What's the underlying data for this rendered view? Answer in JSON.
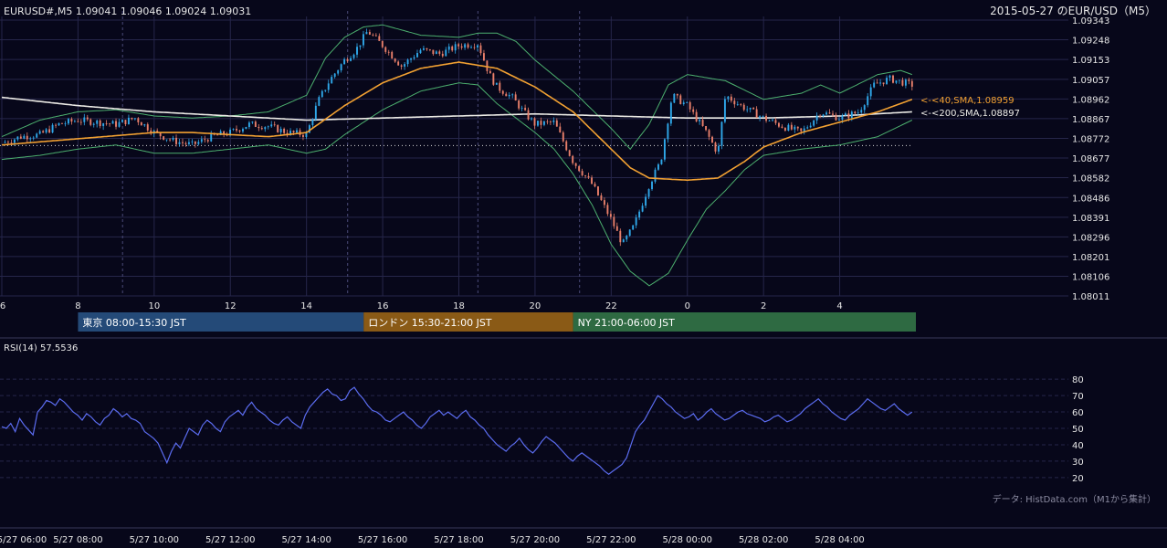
{
  "header": {
    "symbol_info": "EURUSD#,M5 1.09041 1.09046 1.09024 1.09031",
    "title": "2015-05-27 のEUR/USD（M5）"
  },
  "colors": {
    "background": "#07071a",
    "grid": "#26264a",
    "axis_text": "#e6e6e6",
    "candle_up": "#2fa7e8",
    "candle_down": "#e87f6a",
    "bollinger": "#4caf6e",
    "sma40": "#f2a132",
    "sma200": "#ecebe6",
    "rsi": "#5b6cf0",
    "session_tokyo": "#244a78",
    "session_london": "#8a5a16",
    "session_ny": "#2e6a42"
  },
  "chart_data": [
    {
      "type": "candlestick",
      "name": "price",
      "y_ticks": [
        "1.09343",
        "1.09248",
        "1.09153",
        "1.09057",
        "1.08962",
        "1.08867",
        "1.08772",
        "1.08677",
        "1.08582",
        "1.08486",
        "1.08391",
        "1.08296",
        "1.08201",
        "1.08106",
        "1.08011"
      ],
      "ylim": [
        1.08011,
        1.09343
      ],
      "x_ticks": [
        {
          "label": "6",
          "h": 6
        },
        {
          "label": "8",
          "h": 8
        },
        {
          "label": "10",
          "h": 10
        },
        {
          "label": "12",
          "h": 12
        },
        {
          "label": "14",
          "h": 14
        },
        {
          "label": "16",
          "h": 16
        },
        {
          "label": "18",
          "h": 18
        },
        {
          "label": "20",
          "h": 20
        },
        {
          "label": "22",
          "h": 22
        },
        {
          "label": "0",
          "h": 24
        },
        {
          "label": "2",
          "h": 26
        },
        {
          "label": "4",
          "h": 28
        }
      ],
      "x_range_hours": [
        6,
        30
      ],
      "session_markers_hours": [
        9.17,
        15.08,
        18.5,
        21.17
      ],
      "reference_level": 1.08737,
      "indicators": [
        {
          "label": "<-<40,SMA,1.08959",
          "value": 1.08959,
          "color_key": "sma40"
        },
        {
          "label": "<-<200,SMA,1.08897",
          "value": 1.08897,
          "color_key": "sma200"
        }
      ],
      "sma40_path": [
        [
          6,
          1.0874
        ],
        [
          8,
          1.0877
        ],
        [
          10,
          1.088
        ],
        [
          11,
          1.088
        ],
        [
          12,
          1.0879
        ],
        [
          13,
          1.0878
        ],
        [
          14,
          1.088
        ],
        [
          15,
          1.0893
        ],
        [
          16,
          1.0904
        ],
        [
          17,
          1.0911
        ],
        [
          18,
          1.0914
        ],
        [
          19,
          1.0911
        ],
        [
          20,
          1.0902
        ],
        [
          21,
          1.089
        ],
        [
          22,
          1.0872
        ],
        [
          22.5,
          1.0863
        ],
        [
          23,
          1.0858
        ],
        [
          24,
          1.0857
        ],
        [
          24.8,
          1.0858
        ],
        [
          25.5,
          1.0866
        ],
        [
          26,
          1.0873
        ],
        [
          27,
          1.088
        ],
        [
          28,
          1.0885
        ],
        [
          29,
          1.089
        ],
        [
          29.9,
          1.0896
        ]
      ],
      "sma200_path": [
        [
          6,
          1.0897
        ],
        [
          8,
          1.0893
        ],
        [
          10,
          1.089
        ],
        [
          12,
          1.0888
        ],
        [
          14,
          1.0886
        ],
        [
          16,
          1.0887
        ],
        [
          18,
          1.0888
        ],
        [
          20,
          1.0889
        ],
        [
          22,
          1.0888
        ],
        [
          24,
          1.0887
        ],
        [
          26,
          1.0887
        ],
        [
          28,
          1.0888
        ],
        [
          29.9,
          1.089
        ]
      ],
      "bb_upper": [
        [
          6,
          1.0878
        ],
        [
          7,
          1.0886
        ],
        [
          8,
          1.089
        ],
        [
          9,
          1.0891
        ],
        [
          10,
          1.0888
        ],
        [
          11,
          1.0887
        ],
        [
          12,
          1.0888
        ],
        [
          13,
          1.089
        ],
        [
          14,
          1.0898
        ],
        [
          14.5,
          1.0916
        ],
        [
          15,
          1.0926
        ],
        [
          15.5,
          1.0931
        ],
        [
          16,
          1.0932
        ],
        [
          17,
          1.0927
        ],
        [
          18,
          1.0926
        ],
        [
          18.5,
          1.0928
        ],
        [
          19,
          1.0928
        ],
        [
          19.5,
          1.0924
        ],
        [
          20,
          1.0915
        ],
        [
          21,
          1.09
        ],
        [
          22,
          1.0882
        ],
        [
          22.5,
          1.0872
        ],
        [
          23,
          1.0884
        ],
        [
          23.5,
          1.0903
        ],
        [
          24,
          1.0908
        ],
        [
          25,
          1.0905
        ],
        [
          26,
          1.0896
        ],
        [
          27,
          1.0899
        ],
        [
          27.5,
          1.0903
        ],
        [
          28,
          1.0899
        ],
        [
          29,
          1.0908
        ],
        [
          29.6,
          1.091
        ],
        [
          29.9,
          1.0908
        ]
      ],
      "bb_lower": [
        [
          6,
          1.0867
        ],
        [
          7,
          1.0869
        ],
        [
          8,
          1.0872
        ],
        [
          9,
          1.0874
        ],
        [
          10,
          1.087
        ],
        [
          11,
          1.087
        ],
        [
          12,
          1.0872
        ],
        [
          13,
          1.0874
        ],
        [
          14,
          1.087
        ],
        [
          14.5,
          1.0872
        ],
        [
          15,
          1.0879
        ],
        [
          16,
          1.0891
        ],
        [
          17,
          1.09
        ],
        [
          18,
          1.0904
        ],
        [
          18.5,
          1.0903
        ],
        [
          19,
          1.0894
        ],
        [
          20,
          1.088
        ],
        [
          20.5,
          1.0872
        ],
        [
          21,
          1.086
        ],
        [
          21.5,
          1.0845
        ],
        [
          22,
          1.0826
        ],
        [
          22.5,
          1.0813
        ],
        [
          23,
          1.0806
        ],
        [
          23.5,
          1.0812
        ],
        [
          24,
          1.0828
        ],
        [
          24.5,
          1.0843
        ],
        [
          25,
          1.0852
        ],
        [
          25.5,
          1.0862
        ],
        [
          26,
          1.0869
        ],
        [
          27,
          1.0872
        ],
        [
          28,
          1.0874
        ],
        [
          29,
          1.0878
        ],
        [
          29.9,
          1.0886
        ]
      ],
      "close_path": [
        [
          6,
          1.0875
        ],
        [
          6.5,
          1.0878
        ],
        [
          7,
          1.0879
        ],
        [
          7.5,
          1.0884
        ],
        [
          8,
          1.0886
        ],
        [
          8.5,
          1.0885
        ],
        [
          9,
          1.0884
        ],
        [
          9.5,
          1.0887
        ],
        [
          10,
          1.088
        ],
        [
          10.5,
          1.0876
        ],
        [
          11,
          1.0874
        ],
        [
          11.5,
          1.0878
        ],
        [
          12,
          1.088
        ],
        [
          12.5,
          1.0884
        ],
        [
          13,
          1.0883
        ],
        [
          13.5,
          1.088
        ],
        [
          14,
          1.0879
        ],
        [
          14.3,
          1.0895
        ],
        [
          14.6,
          1.0905
        ],
        [
          15,
          1.0915
        ],
        [
          15.3,
          1.092
        ],
        [
          15.6,
          1.0929
        ],
        [
          16,
          1.0922
        ],
        [
          16.5,
          1.0912
        ],
        [
          17,
          1.092
        ],
        [
          17.5,
          1.0918
        ],
        [
          18,
          1.0922
        ],
        [
          18.5,
          1.0923
        ],
        [
          18.8,
          1.0908
        ],
        [
          19,
          1.0902
        ],
        [
          19.4,
          1.0897
        ],
        [
          19.7,
          1.089
        ],
        [
          20,
          1.0884
        ],
        [
          20.5,
          1.0885
        ],
        [
          21,
          1.0866
        ],
        [
          21.5,
          1.0855
        ],
        [
          22,
          1.0838
        ],
        [
          22.3,
          1.0826
        ],
        [
          22.6,
          1.0835
        ],
        [
          23,
          1.0855
        ],
        [
          23.3,
          1.0866
        ],
        [
          23.6,
          1.0898
        ],
        [
          24,
          1.0893
        ],
        [
          24.5,
          1.088
        ],
        [
          24.8,
          1.087
        ],
        [
          25,
          1.0898
        ],
        [
          25.4,
          1.0893
        ],
        [
          26,
          1.0887
        ],
        [
          26.5,
          1.0883
        ],
        [
          27,
          1.088
        ],
        [
          27.5,
          1.089
        ],
        [
          28,
          1.0887
        ],
        [
          28.5,
          1.089
        ],
        [
          28.9,
          1.0903
        ],
        [
          29.3,
          1.0906
        ],
        [
          29.9,
          1.0903
        ]
      ]
    },
    {
      "type": "line",
      "name": "rsi",
      "label": "RSI(14) 57.5536",
      "y_ticks": [
        "80",
        "70",
        "60",
        "50",
        "40",
        "30",
        "20"
      ],
      "ylim": [
        16,
        84
      ],
      "x_range_hours": [
        6,
        30
      ],
      "x_ticks": [
        {
          "label": "5/27 06:00",
          "h": 6
        },
        {
          "label": "5/27 08:00",
          "h": 8
        },
        {
          "label": "5/27 10:00",
          "h": 10
        },
        {
          "label": "5/27 12:00",
          "h": 12
        },
        {
          "label": "5/27 14:00",
          "h": 14
        },
        {
          "label": "5/27 16:00",
          "h": 16
        },
        {
          "label": "5/27 18:00",
          "h": 18
        },
        {
          "label": "5/27 20:00",
          "h": 20
        },
        {
          "label": "5/27 22:00",
          "h": 22
        },
        {
          "label": "5/28 00:00",
          "h": 24
        },
        {
          "label": "5/28 02:00",
          "h": 26
        },
        {
          "label": "5/28 04:00",
          "h": 28
        }
      ],
      "values": [
        51,
        50,
        53,
        48,
        56,
        52,
        49,
        46,
        60,
        63,
        67,
        66,
        64,
        68,
        66,
        63,
        60,
        58,
        55,
        59,
        57,
        54,
        52,
        56,
        58,
        62,
        60,
        57,
        59,
        56,
        55,
        53,
        48,
        46,
        44,
        41,
        35,
        29,
        36,
        41,
        38,
        44,
        50,
        48,
        46,
        52,
        55,
        53,
        50,
        48,
        54,
        57,
        59,
        61,
        58,
        63,
        66,
        62,
        60,
        58,
        55,
        53,
        52,
        55,
        57,
        54,
        52,
        50,
        58,
        63,
        66,
        69,
        72,
        74,
        71,
        70,
        67,
        68,
        73,
        75,
        71,
        68,
        64,
        61,
        60,
        58,
        55,
        54,
        56,
        58,
        60,
        57,
        55,
        52,
        50,
        53,
        57,
        59,
        61,
        58,
        60,
        58,
        56,
        59,
        61,
        57,
        55,
        52,
        50,
        46,
        43,
        40,
        38,
        36,
        39,
        41,
        44,
        40,
        37,
        35,
        38,
        42,
        45,
        43,
        41,
        38,
        35,
        32,
        30,
        33,
        35,
        33,
        31,
        29,
        27,
        24,
        22,
        24,
        26,
        28,
        32,
        40,
        48,
        52,
        55,
        60,
        65,
        70,
        68,
        65,
        63,
        60,
        58,
        56,
        57,
        59,
        55,
        57,
        60,
        62,
        59,
        57,
        55,
        56,
        58,
        60,
        61,
        59,
        58,
        57,
        56,
        54,
        55,
        57,
        58,
        56,
        54,
        55,
        57,
        59,
        62,
        64,
        66,
        68,
        65,
        63,
        60,
        58,
        56,
        55,
        58,
        60,
        62,
        65,
        68,
        66,
        64,
        62,
        61,
        63,
        65,
        62,
        60,
        58,
        60
      ]
    }
  ],
  "sessions": [
    {
      "label": "東京 08:00-15:30 JST",
      "start_h": 8,
      "end_h": 15.5,
      "color_key": "session_tokyo"
    },
    {
      "label": "ロンドン 15:30-21:00 JST",
      "start_h": 15.5,
      "end_h": 21,
      "color_key": "session_london"
    },
    {
      "label": "NY 21:00-06:00 JST",
      "start_h": 21,
      "end_h": 30,
      "color_key": "session_ny"
    }
  ],
  "credit": "データ: HistData.com（M1から集計）"
}
